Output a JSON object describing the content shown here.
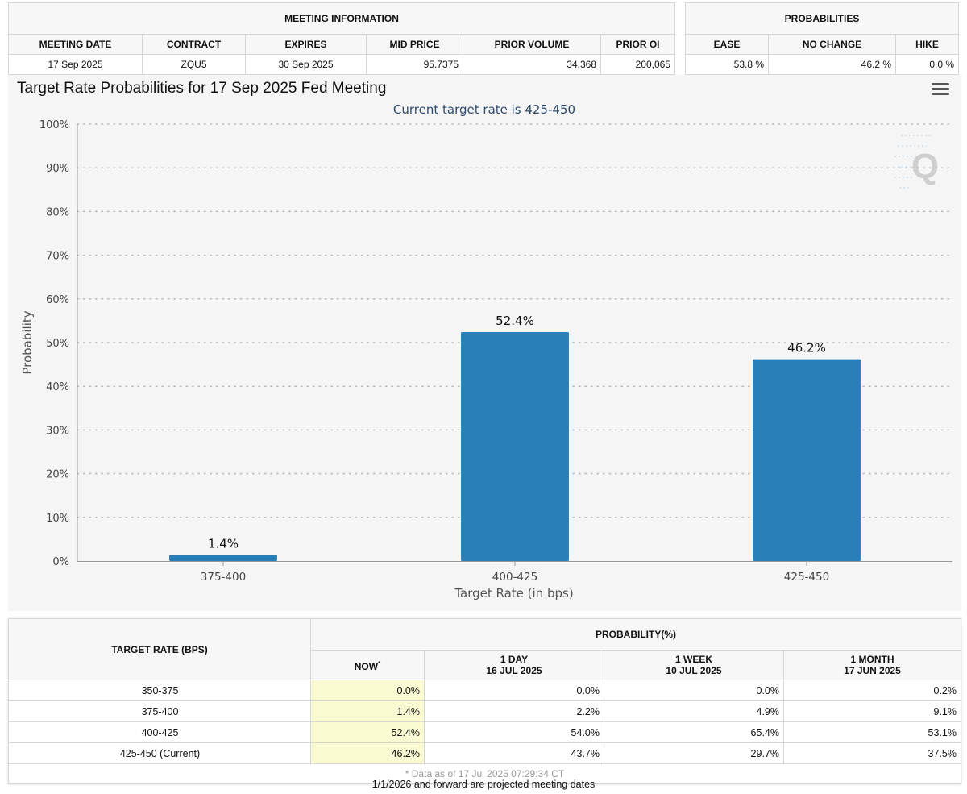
{
  "meeting_info": {
    "title": "MEETING INFORMATION",
    "headers": [
      "MEETING DATE",
      "CONTRACT",
      "EXPIRES",
      "MID PRICE",
      "PRIOR VOLUME",
      "PRIOR OI"
    ],
    "values": [
      "17 Sep 2025",
      "ZQU5",
      "30 Sep 2025",
      "95.7375",
      "34,368",
      "200,065"
    ]
  },
  "probabilities": {
    "title": "PROBABILITIES",
    "headers": [
      "EASE",
      "NO CHANGE",
      "HIKE"
    ],
    "values": [
      "53.8 %",
      "46.2 %",
      "0.0 %"
    ]
  },
  "chart_title": "Target Rate Probabilities for 17 Sep 2025 Fed Meeting",
  "chart_data": {
    "type": "bar",
    "title": "Target Rate Probabilities for 17 Sep 2025 Fed Meeting",
    "subtitle": "Current target rate is 425-450",
    "xlabel": "Target Rate (in bps)",
    "ylabel": "Probability",
    "categories": [
      "375-400",
      "400-425",
      "425-450"
    ],
    "values": [
      1.4,
      52.4,
      46.2
    ],
    "data_labels": [
      "1.4%",
      "52.4%",
      "46.2%"
    ],
    "ylim": [
      0,
      100
    ],
    "yticks": [
      0,
      10,
      20,
      30,
      40,
      50,
      60,
      70,
      80,
      90,
      100
    ],
    "ytick_suffix": "%",
    "grid": true,
    "bar_color": "#2980b9",
    "subtitle_color": "#2c4a6e"
  },
  "bucket_table": {
    "rate_header": "TARGET RATE (BPS)",
    "prob_header": "PROBABILITY(%)",
    "col_now": "NOW",
    "col_now_mark": "*",
    "cols": [
      {
        "label": "1 DAY",
        "date": "16 JUL 2025"
      },
      {
        "label": "1 WEEK",
        "date": "10 JUL 2025"
      },
      {
        "label": "1 MONTH",
        "date": "17 JUN 2025"
      }
    ],
    "rows": [
      {
        "rate": "350-375",
        "now": "0.0%",
        "d1": "0.0%",
        "w1": "0.0%",
        "m1": "0.2%"
      },
      {
        "rate": "375-400",
        "now": "1.4%",
        "d1": "2.2%",
        "w1": "4.9%",
        "m1": "9.1%"
      },
      {
        "rate": "400-425",
        "now": "52.4%",
        "d1": "54.0%",
        "w1": "65.4%",
        "m1": "53.1%"
      },
      {
        "rate": "425-450 (Current)",
        "now": "46.2%",
        "d1": "43.7%",
        "w1": "29.7%",
        "m1": "37.5%"
      }
    ],
    "footnote": "* Data as of 17 Jul 2025 07:29:34 CT"
  },
  "bottom_note": "1/1/2026 and forward are projected meeting dates"
}
